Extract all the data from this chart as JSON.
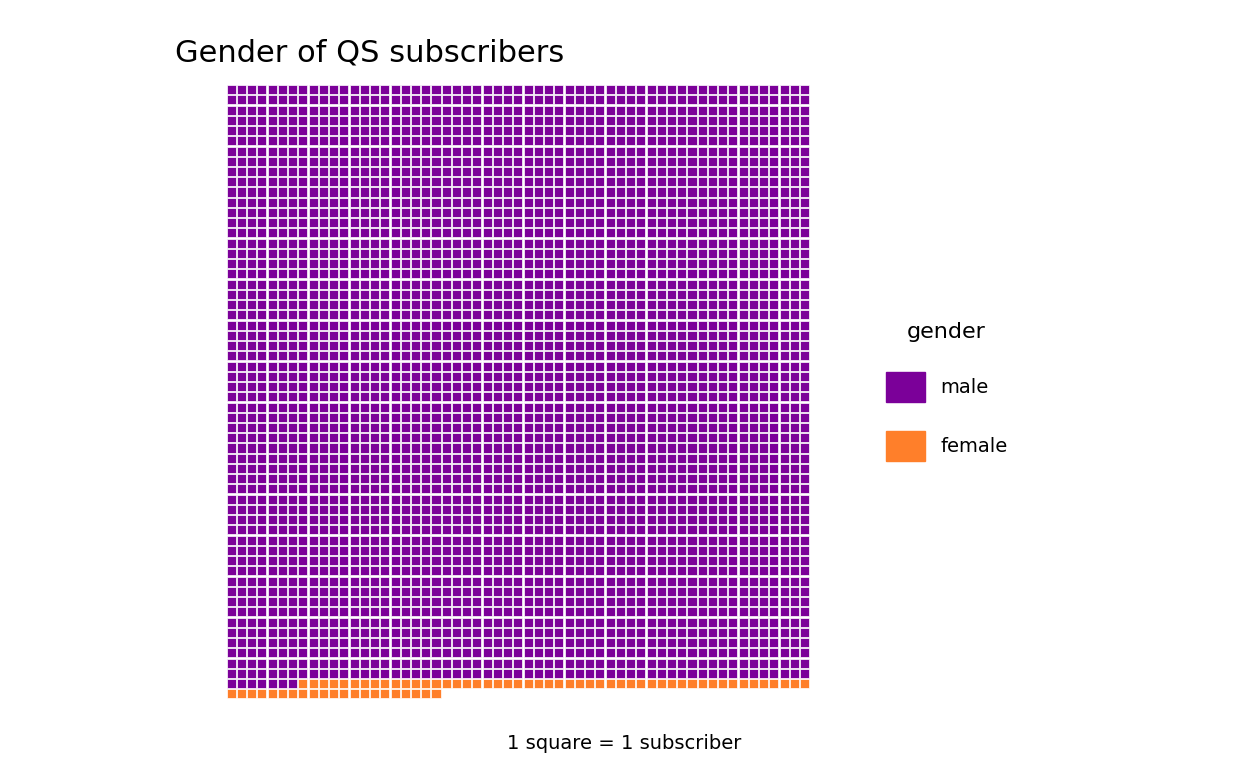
{
  "male_count": 3313,
  "female_count": 71,
  "total": 3384,
  "n_cols": 57,
  "male_color": "#7B0099",
  "female_color": "#FF7F2A",
  "bg_color": "#FFFFFF",
  "grid_color": "#FFFFFF",
  "title": "Gender of QS subscribers",
  "caption": "1 square = 1 subscriber",
  "legend_title": "gender",
  "legend_labels": [
    "male",
    "female"
  ],
  "title_fontsize": 22,
  "caption_fontsize": 14,
  "legend_fontsize": 14,
  "legend_title_fontsize": 16
}
